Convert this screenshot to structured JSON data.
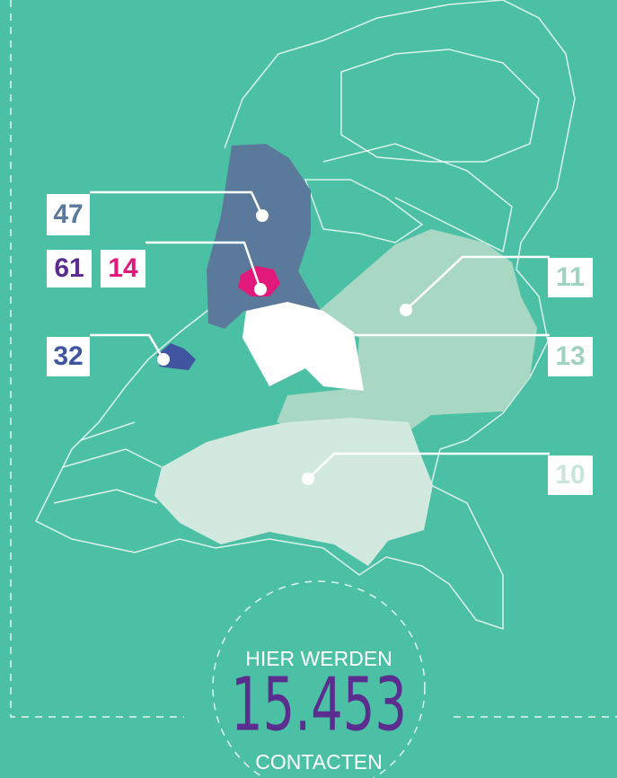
{
  "markers": [
    {
      "value": 47
    },
    {
      "value": 61
    },
    {
      "value": 14
    },
    {
      "value": 32
    },
    {
      "value": 11
    },
    {
      "value": 13
    },
    {
      "value": 10
    }
  ],
  "total": {
    "top": "HIER WERDEN",
    "number": "15.453",
    "bottom": "CONTACTEN"
  }
}
